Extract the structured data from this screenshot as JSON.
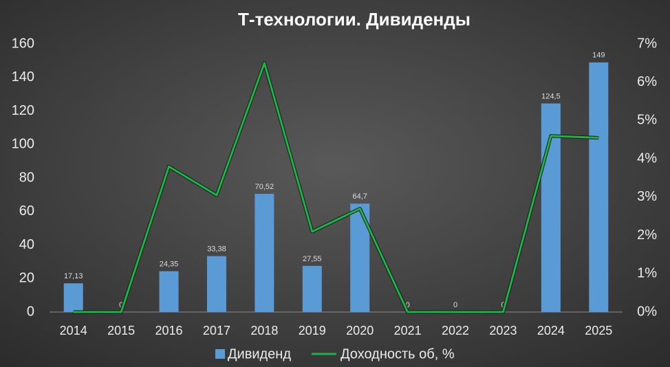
{
  "chart_data": {
    "type": "bar",
    "title": "Т-технологии. Дивиденды",
    "categories": [
      "2014",
      "2015",
      "2016",
      "2017",
      "2018",
      "2019",
      "2020",
      "2021",
      "2022",
      "2023",
      "2024",
      "2025"
    ],
    "series": [
      {
        "name": "Дивиденд",
        "type": "bar",
        "color": "#5b9bd5",
        "values": [
          17.13,
          0,
          24.35,
          33.38,
          70.52,
          27.55,
          64.7,
          0,
          0,
          0,
          124.5,
          149
        ],
        "value_labels": [
          "17,13",
          "0",
          "24,35",
          "33,38",
          "70,52",
          "27,55",
          "64,7",
          "0",
          "0",
          "0",
          "124,5",
          "149"
        ]
      },
      {
        "name": "Доходность об, %",
        "type": "line",
        "axis": "y2",
        "color": "#1db447",
        "values": [
          0,
          0,
          3.8,
          3.05,
          6.5,
          2.1,
          2.7,
          0,
          0,
          0,
          4.6,
          4.55
        ]
      }
    ],
    "ylim": [
      0,
      160
    ],
    "yticks": [
      0,
      20,
      40,
      60,
      80,
      100,
      120,
      140,
      160
    ],
    "y2lim": [
      0,
      7
    ],
    "y2ticks": [
      {
        "value": 0,
        "label": "0%"
      },
      {
        "value": 1,
        "label": "1%"
      },
      {
        "value": 2,
        "label": "2%"
      },
      {
        "value": 3,
        "label": "3%"
      },
      {
        "value": 4,
        "label": "4%"
      },
      {
        "value": 5,
        "label": "5%"
      },
      {
        "value": 6,
        "label": "6%"
      },
      {
        "value": 7,
        "label": "7%"
      }
    ],
    "grid": false,
    "legend": "bottom"
  }
}
